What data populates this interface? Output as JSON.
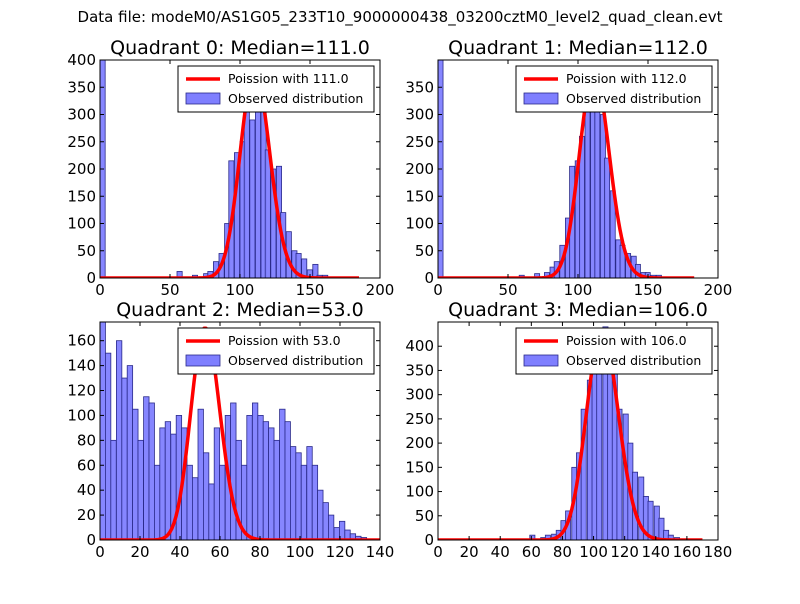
{
  "suptitle": "Data file: modeM0/AS1G05_233T10_9000000438_03200cztM0_level2_quad_clean.evt",
  "colors": {
    "hist_fill": "#7f7fff",
    "hist_edge": "#2a2a8a",
    "poisson": "#ff0000",
    "legend_edge": "#000000"
  },
  "chart_data": [
    {
      "type": "bar",
      "title": "Quadrant 0: Median=111.0",
      "xlim": [
        0,
        200
      ],
      "ylim": [
        0,
        400
      ],
      "xticks": [
        0,
        50,
        100,
        150,
        200
      ],
      "yticks": [
        0,
        50,
        100,
        150,
        200,
        250,
        300,
        350,
        400
      ],
      "legend": {
        "position": "top-right",
        "entries": [
          "Poission with 111.0",
          "Observed distribution"
        ]
      },
      "bin_width": 3.7,
      "hist": [
        [
          0,
          400
        ],
        [
          55,
          12
        ],
        [
          66,
          5
        ],
        [
          74,
          8
        ],
        [
          77,
          12
        ],
        [
          81,
          30
        ],
        [
          85,
          45
        ],
        [
          89,
          100
        ],
        [
          92,
          215
        ],
        [
          96,
          230
        ],
        [
          100,
          250
        ],
        [
          103,
          370
        ],
        [
          107,
          290
        ],
        [
          111,
          340
        ],
        [
          115,
          320
        ],
        [
          118,
          235
        ],
        [
          122,
          200
        ],
        [
          126,
          205
        ],
        [
          129,
          120
        ],
        [
          133,
          85
        ],
        [
          137,
          50
        ],
        [
          140,
          45
        ],
        [
          144,
          35
        ],
        [
          148,
          15
        ],
        [
          152,
          25
        ],
        [
          155,
          5
        ],
        [
          159,
          5
        ],
        [
          163,
          2
        ],
        [
          166,
          2
        ],
        [
          170,
          2
        ]
      ],
      "poisson": {
        "mean": 111,
        "scale": 380,
        "xrange": [
          0,
          185
        ]
      }
    },
    {
      "type": "bar",
      "title": "Quadrant 1: Median=112.0",
      "xlim": [
        0,
        200
      ],
      "ylim": [
        0,
        400
      ],
      "xticks": [
        0,
        50,
        100,
        150,
        200
      ],
      "yticks": [
        0,
        50,
        100,
        150,
        200,
        250,
        300,
        350
      ],
      "legend": {
        "position": "top-right",
        "entries": [
          "Poission with 112.0",
          "Observed distribution"
        ]
      },
      "bin_width": 3.6,
      "hist": [
        [
          0,
          400
        ],
        [
          58,
          5
        ],
        [
          69,
          8
        ],
        [
          76,
          10
        ],
        [
          80,
          20
        ],
        [
          83,
          30
        ],
        [
          87,
          60
        ],
        [
          91,
          110
        ],
        [
          94,
          205
        ],
        [
          98,
          215
        ],
        [
          101,
          260
        ],
        [
          105,
          370
        ],
        [
          109,
          380
        ],
        [
          112,
          320
        ],
        [
          116,
          300
        ],
        [
          119,
          220
        ],
        [
          123,
          160
        ],
        [
          127,
          70
        ],
        [
          130,
          60
        ],
        [
          134,
          45
        ],
        [
          138,
          40
        ],
        [
          141,
          25
        ],
        [
          145,
          10
        ],
        [
          148,
          10
        ],
        [
          152,
          5
        ],
        [
          156,
          5
        ]
      ],
      "poisson": {
        "mean": 112,
        "scale": 378,
        "xrange": [
          0,
          183
        ]
      }
    },
    {
      "type": "bar",
      "title": "Quadrant 2: Median=53.0",
      "xlim": [
        0,
        140
      ],
      "ylim": [
        0,
        175
      ],
      "xticks": [
        0,
        20,
        40,
        60,
        80,
        100,
        120,
        140
      ],
      "yticks": [
        0,
        20,
        40,
        60,
        80,
        100,
        120,
        140,
        160
      ],
      "legend": {
        "position": "top-right",
        "entries": [
          "Poission with 53.0",
          "Observed distribution"
        ]
      },
      "bin_width": 2.72,
      "hist": [
        [
          0,
          175
        ],
        [
          2.7,
          150
        ],
        [
          5.4,
          80
        ],
        [
          8.2,
          160
        ],
        [
          10.9,
          130
        ],
        [
          13.6,
          140
        ],
        [
          16.3,
          105
        ],
        [
          19,
          80
        ],
        [
          21.8,
          115
        ],
        [
          24.5,
          110
        ],
        [
          27.2,
          60
        ],
        [
          29.9,
          90
        ],
        [
          32.6,
          95
        ],
        [
          35.4,
          85
        ],
        [
          38.1,
          100
        ],
        [
          40.8,
          90
        ],
        [
          43.5,
          60
        ],
        [
          46.2,
          50
        ],
        [
          49,
          105
        ],
        [
          51.7,
          70
        ],
        [
          54.4,
          45
        ],
        [
          57.1,
          90
        ],
        [
          59.8,
          60
        ],
        [
          62.6,
          100
        ],
        [
          65.3,
          110
        ],
        [
          68,
          80
        ],
        [
          70.7,
          60
        ],
        [
          73.4,
          100
        ],
        [
          76.2,
          110
        ],
        [
          78.9,
          100
        ],
        [
          81.6,
          95
        ],
        [
          84.3,
          90
        ],
        [
          87,
          80
        ],
        [
          89.8,
          105
        ],
        [
          92.5,
          95
        ],
        [
          95.2,
          75
        ],
        [
          97.9,
          70
        ],
        [
          100.6,
          60
        ],
        [
          103.4,
          75
        ],
        [
          106.1,
          60
        ],
        [
          108.8,
          40
        ],
        [
          111.5,
          30
        ],
        [
          114.2,
          20
        ],
        [
          117,
          10
        ],
        [
          119.7,
          15
        ],
        [
          122.4,
          8
        ],
        [
          125.1,
          5
        ],
        [
          127.8,
          3
        ],
        [
          130.6,
          2
        ]
      ],
      "poisson": {
        "mean": 53,
        "scale": 170,
        "xrange": [
          0,
          140
        ]
      }
    },
    {
      "type": "bar",
      "title": "Quadrant 3: Median=106.0",
      "xlim": [
        0,
        180
      ],
      "ylim": [
        0,
        450
      ],
      "xticks": [
        0,
        20,
        40,
        60,
        80,
        100,
        120,
        140,
        160,
        180
      ],
      "yticks": [
        0,
        50,
        100,
        150,
        200,
        250,
        300,
        350,
        400
      ],
      "legend": {
        "position": "top-right",
        "entries": [
          "Poission with 106.0",
          "Observed distribution"
        ]
      },
      "bin_width": 3.3,
      "hist": [
        [
          59,
          10
        ],
        [
          66,
          5
        ],
        [
          69,
          10
        ],
        [
          73,
          12
        ],
        [
          76,
          20
        ],
        [
          79,
          40
        ],
        [
          82,
          60
        ],
        [
          86,
          150
        ],
        [
          89,
          180
        ],
        [
          92,
          270
        ],
        [
          96,
          330
        ],
        [
          99,
          380
        ],
        [
          102,
          400
        ],
        [
          106,
          440
        ],
        [
          109,
          400
        ],
        [
          112,
          420
        ],
        [
          115,
          270
        ],
        [
          119,
          260
        ],
        [
          122,
          200
        ],
        [
          125,
          140
        ],
        [
          129,
          130
        ],
        [
          132,
          90
        ],
        [
          135,
          80
        ],
        [
          139,
          70
        ],
        [
          142,
          45
        ],
        [
          145,
          20
        ],
        [
          148,
          10
        ],
        [
          152,
          5
        ]
      ],
      "poisson": {
        "mean": 106,
        "scale": 430,
        "xrange": [
          0,
          170
        ]
      }
    }
  ]
}
